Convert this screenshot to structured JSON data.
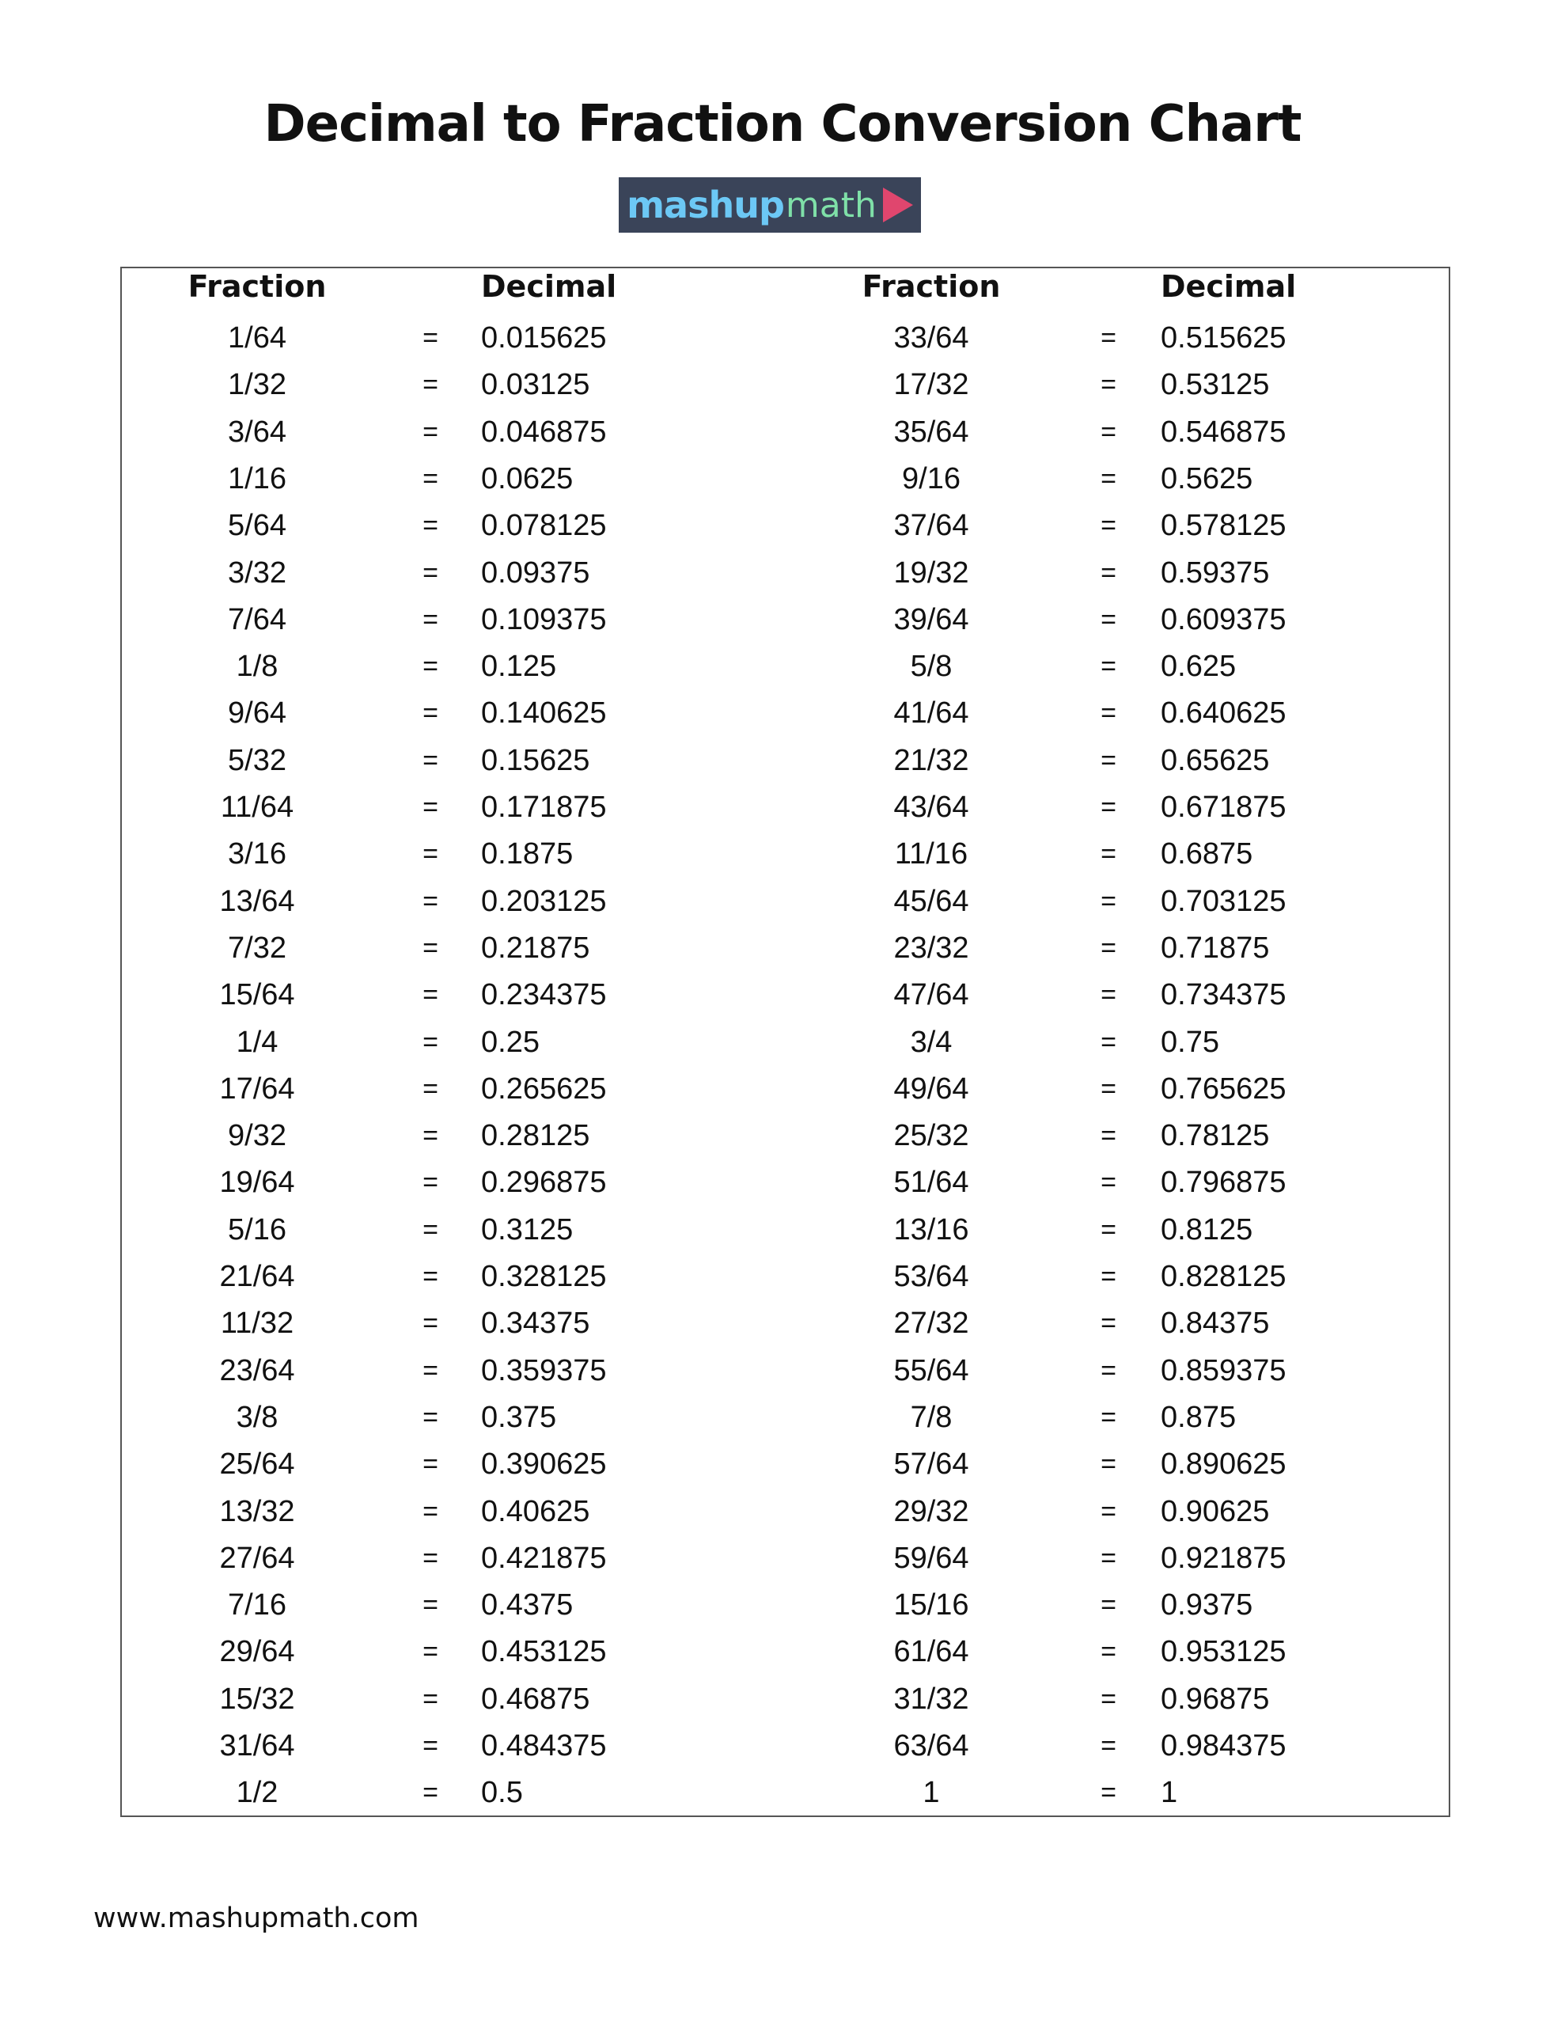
{
  "title": "Decimal to Fraction Conversion Chart",
  "logo": {
    "part1": "mashup",
    "part2": "math",
    "colors": {
      "background": "#3a4459",
      "mashup": "#6cc8f5",
      "math": "#7fe0a8",
      "play": "#e0466e"
    }
  },
  "headers": {
    "fraction": "Fraction",
    "decimal": "Decimal"
  },
  "equals": "=",
  "left_rows": [
    [
      "1/64",
      "0.015625"
    ],
    [
      "1/32",
      "0.03125"
    ],
    [
      "3/64",
      "0.046875"
    ],
    [
      "1/16",
      "0.0625"
    ],
    [
      "5/64",
      "0.078125"
    ],
    [
      "3/32",
      "0.09375"
    ],
    [
      "7/64",
      "0.109375"
    ],
    [
      "1/8",
      "0.125"
    ],
    [
      "9/64",
      "0.140625"
    ],
    [
      "5/32",
      "0.15625"
    ],
    [
      "11/64",
      "0.171875"
    ],
    [
      "3/16",
      "0.1875"
    ],
    [
      "13/64",
      "0.203125"
    ],
    [
      "7/32",
      "0.21875"
    ],
    [
      "15/64",
      "0.234375"
    ],
    [
      "1/4",
      "0.25"
    ],
    [
      "17/64",
      "0.265625"
    ],
    [
      "9/32",
      "0.28125"
    ],
    [
      "19/64",
      "0.296875"
    ],
    [
      "5/16",
      "0.3125"
    ],
    [
      "21/64",
      "0.328125"
    ],
    [
      "11/32",
      "0.34375"
    ],
    [
      "23/64",
      "0.359375"
    ],
    [
      "3/8",
      "0.375"
    ],
    [
      "25/64",
      "0.390625"
    ],
    [
      "13/32",
      "0.40625"
    ],
    [
      "27/64",
      "0.421875"
    ],
    [
      "7/16",
      "0.4375"
    ],
    [
      "29/64",
      "0.453125"
    ],
    [
      "15/32",
      "0.46875"
    ],
    [
      "31/64",
      "0.484375"
    ],
    [
      "1/2",
      "0.5"
    ]
  ],
  "right_rows": [
    [
      "33/64",
      "0.515625"
    ],
    [
      "17/32",
      "0.53125"
    ],
    [
      "35/64",
      "0.546875"
    ],
    [
      "9/16",
      "0.5625"
    ],
    [
      "37/64",
      "0.578125"
    ],
    [
      "19/32",
      "0.59375"
    ],
    [
      "39/64",
      "0.609375"
    ],
    [
      "5/8",
      "0.625"
    ],
    [
      "41/64",
      "0.640625"
    ],
    [
      "21/32",
      "0.65625"
    ],
    [
      "43/64",
      "0.671875"
    ],
    [
      "11/16",
      "0.6875"
    ],
    [
      "45/64",
      "0.703125"
    ],
    [
      "23/32",
      "0.71875"
    ],
    [
      "47/64",
      "0.734375"
    ],
    [
      "3/4",
      "0.75"
    ],
    [
      "49/64",
      "0.765625"
    ],
    [
      "25/32",
      "0.78125"
    ],
    [
      "51/64",
      "0.796875"
    ],
    [
      "13/16",
      "0.8125"
    ],
    [
      "53/64",
      "0.828125"
    ],
    [
      "27/32",
      "0.84375"
    ],
    [
      "55/64",
      "0.859375"
    ],
    [
      "7/8",
      "0.875"
    ],
    [
      "57/64",
      "0.890625"
    ],
    [
      "29/32",
      "0.90625"
    ],
    [
      "59/64",
      "0.921875"
    ],
    [
      "15/16",
      "0.9375"
    ],
    [
      "61/64",
      "0.953125"
    ],
    [
      "31/32",
      "0.96875"
    ],
    [
      "63/64",
      "0.984375"
    ],
    [
      "1",
      "1"
    ]
  ],
  "footer": "www.mashupmath.com"
}
